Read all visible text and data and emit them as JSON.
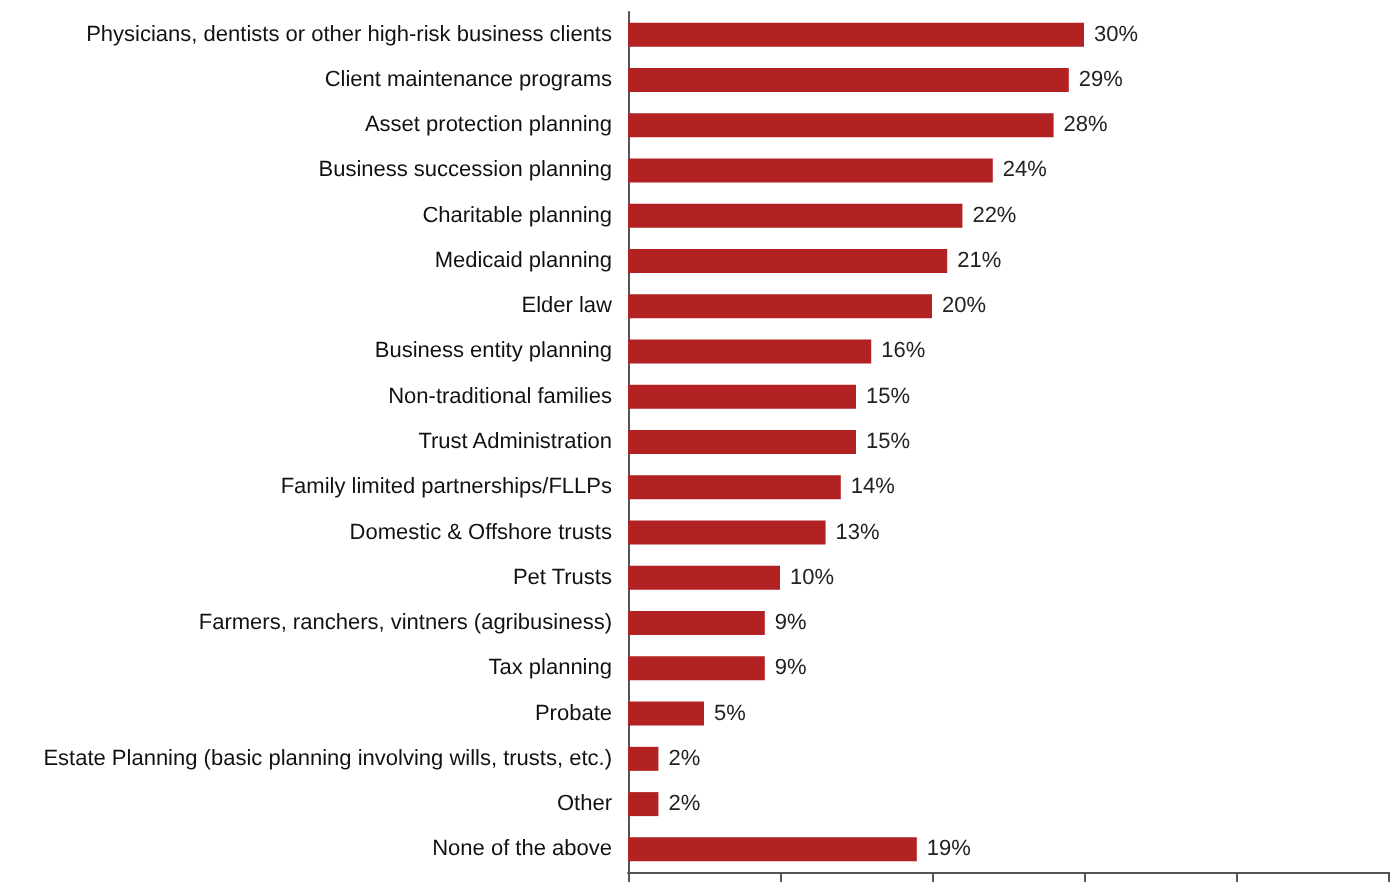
{
  "chart_data": {
    "type": "bar",
    "orientation": "horizontal",
    "categories": [
      "Physicians, dentists or other high-risk business clients",
      "Client maintenance programs",
      "Asset protection planning",
      "Business succession planning",
      "Charitable planning",
      "Medicaid planning",
      "Elder law",
      "Business entity planning",
      "Non-traditional families",
      "Trust Administration",
      "Family limited partnerships/FLLPs",
      "Domestic & Offshore trusts",
      "Pet Trusts",
      "Farmers, ranchers, vintners (agribusiness)",
      "Tax planning",
      "Probate",
      "Estate Planning (basic planning involving wills, trusts, etc.)",
      "Other",
      "None of the above"
    ],
    "values": [
      30,
      29,
      28,
      24,
      22,
      21,
      20,
      16,
      15,
      15,
      14,
      13,
      10,
      9,
      9,
      5,
      2,
      2,
      19
    ],
    "value_labels": [
      "30%",
      "29%",
      "28%",
      "24%",
      "22%",
      "21%",
      "20%",
      "16%",
      "15%",
      "15%",
      "14%",
      "13%",
      "10%",
      "9%",
      "9%",
      "5%",
      "2%",
      "2%",
      "19%"
    ],
    "color": "#b22222",
    "xlim": [
      0,
      50
    ],
    "xticks": [
      {
        "value": 0,
        "label": null
      },
      {
        "value": 10,
        "label": null
      },
      {
        "value": 20,
        "label": null
      },
      {
        "value": 30,
        "label": null
      },
      {
        "value": 40,
        "label": null
      },
      {
        "value": 50,
        "label": null
      }
    ],
    "tick_labels": "y",
    "grid": false
  }
}
